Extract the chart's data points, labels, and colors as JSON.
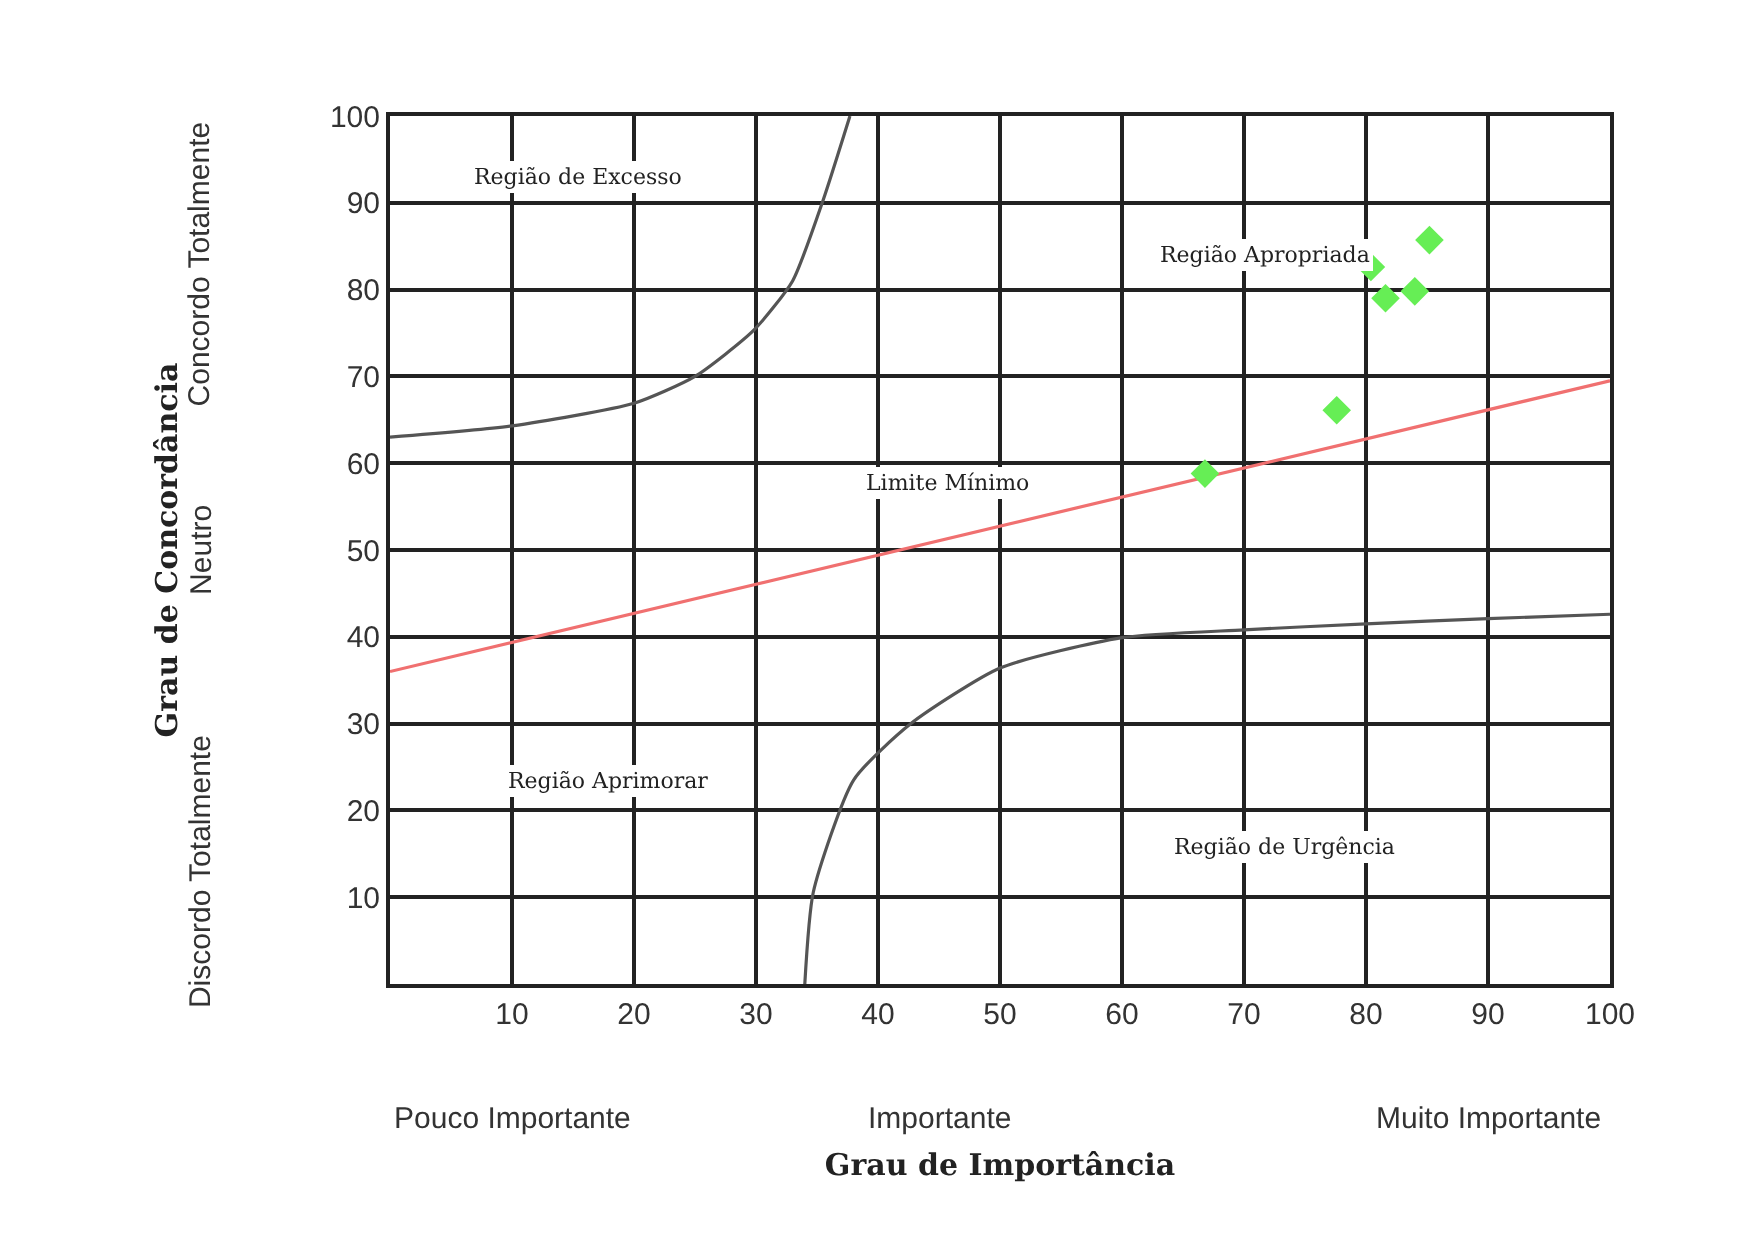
{
  "chart_data": {
    "type": "scatter",
    "xlabel": "Grau de Importância",
    "ylabel": "Grau de Concordância",
    "xlim": [
      0,
      100
    ],
    "ylim": [
      0,
      100
    ],
    "xticks": [
      10,
      20,
      30,
      40,
      50,
      60,
      70,
      80,
      90,
      100
    ],
    "yticks": [
      10,
      20,
      30,
      40,
      50,
      60,
      70,
      80,
      90,
      100
    ],
    "grid": true,
    "legend": false,
    "series": [
      {
        "type": "line",
        "color": "#555555",
        "x": [
          0,
          10,
          20,
          25,
          29.8,
          33,
          35.5,
          37.7
        ],
        "values": [
          63,
          64.3,
          66.9,
          70,
          75.3,
          81,
          90.3,
          100
        ]
      },
      {
        "type": "line",
        "color": "#555555",
        "x": [
          34,
          34.7,
          38,
          42.7,
          50,
          60,
          70,
          80,
          90,
          100
        ],
        "values": [
          0,
          10.6,
          23.5,
          30,
          36.4,
          39.9,
          40.8,
          41.5,
          42.1,
          42.6
        ]
      },
      {
        "type": "line",
        "color": "#f07070",
        "x": [
          0,
          100
        ],
        "values": [
          36,
          69.5
        ]
      },
      {
        "color": "#66ee55",
        "marker": "diamond",
        "x": [
          66.8,
          77.6,
          80.4,
          81.6,
          84.0,
          85.2
        ],
        "values": [
          58.8,
          66.1,
          82.6,
          79.0,
          79.8,
          85.7
        ]
      }
    ],
    "annotations": [
      "Região de Excesso",
      "Região Apropriada",
      "Limite Mínimo",
      "Região Aprimorar",
      "Região de Urgência",
      "Concordo Totalmente",
      "Neutro",
      "Discordo Totalmente",
      "Pouco Importante",
      "Importante",
      "Muito Importante"
    ]
  }
}
